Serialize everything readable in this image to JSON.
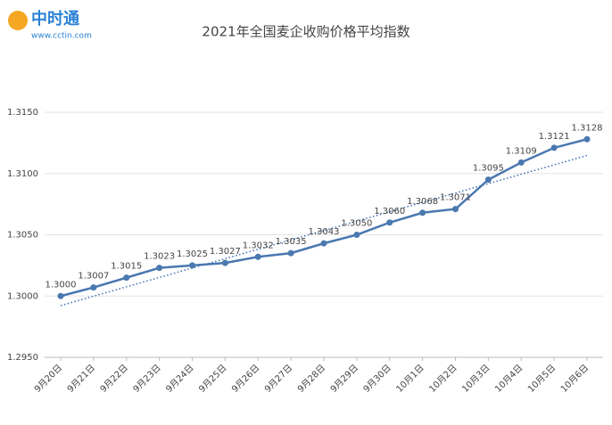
{
  "logo": {
    "name": "中时通",
    "url": "www.cctin.com"
  },
  "chart_data": {
    "type": "line",
    "title": "2021年全国麦企收购价格平均指数",
    "categories": [
      "9月20日",
      "9月21日",
      "9月22日",
      "9月23日",
      "9月24日",
      "9月25日",
      "9月26日",
      "9月27日",
      "9月28日",
      "9月29日",
      "9月30日",
      "10月1日",
      "10月2日",
      "10月3日",
      "10月4日",
      "10月5日",
      "10月6日"
    ],
    "values": [
      1.3,
      1.3007,
      1.3015,
      1.3023,
      1.3025,
      1.3027,
      1.3032,
      1.3035,
      1.3043,
      1.305,
      1.306,
      1.3068,
      1.3071,
      1.3095,
      1.3109,
      1.3121,
      1.3128
    ],
    "value_labels": [
      "1.3000",
      "1.3007",
      "1.3015",
      "1.3023",
      "1.3025",
      "1.3027",
      "1.3032",
      "1.3035",
      "1.3043",
      "1.3050",
      "1.3060",
      "1.3068",
      "1.3071",
      "1.3095",
      "1.3109",
      "1.3121",
      "1.3128"
    ],
    "color": "#4a78b0",
    "trendline": true,
    "trendline_color": "#3c6fb0",
    "ylim": [
      1.295,
      1.315
    ],
    "yticks": [
      {
        "value": 1.295,
        "label": "1.2950"
      },
      {
        "value": 1.3,
        "label": "1.3000"
      },
      {
        "value": 1.305,
        "label": "1.3050"
      },
      {
        "value": 1.31,
        "label": "1.3100"
      },
      {
        "value": 1.315,
        "label": "1.3150"
      }
    ],
    "grid": true
  }
}
